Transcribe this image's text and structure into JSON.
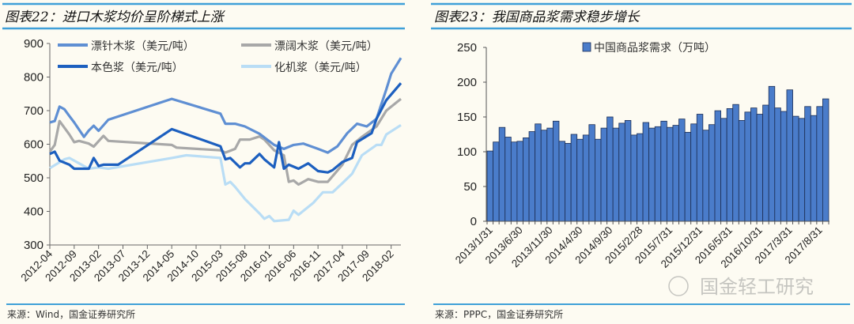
{
  "charts": [
    {
      "title": "图表22：进口木浆均价呈阶梯式上涨",
      "source": "来源：Wind，国金证券研究所"
    },
    {
      "title": "图表23：我国商品浆需求稳步增长",
      "source": "来源：PPPC，国金证券研究所",
      "watermark": "国金轻工研究"
    }
  ],
  "chart_data": [
    {
      "type": "line",
      "title": "图表22：进口木浆均价呈阶梯式上涨",
      "xlabel": "",
      "ylabel": "",
      "xlim": [
        "2012-04",
        "2018-04"
      ],
      "ylim": [
        300,
        900
      ],
      "yticks": [
        300,
        400,
        500,
        600,
        700,
        800,
        900
      ],
      "xticks": [
        "2012-04",
        "2012-09",
        "2013-02",
        "2013-07",
        "2013-12",
        "2014-05",
        "2014-10",
        "2015-03",
        "2015-08",
        "2016-01",
        "2016-06",
        "2016-11",
        "2017-04",
        "2017-09",
        "2018-02"
      ],
      "grid": false,
      "legend": "top",
      "series": [
        {
          "name": "漂针木浆（美元/吨）",
          "color": "#5f8fd3",
          "points": [
            [
              "2012-04",
              665
            ],
            [
              "2012-05",
              669
            ],
            [
              "2012-06",
              712
            ],
            [
              "2012-07",
              704
            ],
            [
              "2012-08",
              684
            ],
            [
              "2012-09",
              665
            ],
            [
              "2012-11",
              622
            ],
            [
              "2012-12",
              641
            ],
            [
              "2013-01",
              655
            ],
            [
              "2013-02",
              640
            ],
            [
              "2013-04",
              673
            ],
            [
              "2014-05",
              735
            ],
            [
              "2015-03",
              691
            ],
            [
              "2015-04",
              661
            ],
            [
              "2015-06",
              661
            ],
            [
              "2015-08",
              653
            ],
            [
              "2015-11",
              631
            ],
            [
              "2016-02",
              598
            ],
            [
              "2016-04",
              586
            ],
            [
              "2016-06",
              598
            ],
            [
              "2016-08",
              602
            ],
            [
              "2016-11",
              586
            ],
            [
              "2017-01",
              575
            ],
            [
              "2017-03",
              594
            ],
            [
              "2017-05",
              633
            ],
            [
              "2017-07",
              661
            ],
            [
              "2017-09",
              653
            ],
            [
              "2017-11",
              676
            ],
            [
              "2018-01",
              763
            ],
            [
              "2018-02",
              810
            ],
            [
              "2018-04",
              857
            ]
          ]
        },
        {
          "name": "漂阔木浆（美元/吨）",
          "color": "#a8a8a8",
          "points": [
            [
              "2012-04",
              578
            ],
            [
              "2012-05",
              598
            ],
            [
              "2012-06",
              669
            ],
            [
              "2012-08",
              629
            ],
            [
              "2012-09",
              606
            ],
            [
              "2012-10",
              610
            ],
            [
              "2012-12",
              602
            ],
            [
              "2013-01",
              593
            ],
            [
              "2013-03",
              625
            ],
            [
              "2013-04",
              610
            ],
            [
              "2014-05",
              598
            ],
            [
              "2014-06",
              590
            ],
            [
              "2015-03",
              582
            ],
            [
              "2015-04",
              575
            ],
            [
              "2015-06",
              586
            ],
            [
              "2015-07",
              614
            ],
            [
              "2015-09",
              614
            ],
            [
              "2015-11",
              623
            ],
            [
              "2015-12",
              614
            ],
            [
              "2016-02",
              582
            ],
            [
              "2016-04",
              567
            ],
            [
              "2016-05",
              488
            ],
            [
              "2016-06",
              492
            ],
            [
              "2016-07",
              480
            ],
            [
              "2016-09",
              496
            ],
            [
              "2016-11",
              488
            ],
            [
              "2017-01",
              488
            ],
            [
              "2017-04",
              539
            ],
            [
              "2017-06",
              598
            ],
            [
              "2017-08",
              622
            ],
            [
              "2017-11",
              653
            ],
            [
              "2018-01",
              700
            ],
            [
              "2018-04",
              735
            ]
          ]
        },
        {
          "name": "本色浆（美元/吨）",
          "color": "#1c5fbf",
          "points": [
            [
              "2012-04",
              571
            ],
            [
              "2012-05",
              578
            ],
            [
              "2012-06",
              551
            ],
            [
              "2012-08",
              539
            ],
            [
              "2012-09",
              527
            ],
            [
              "2012-12",
              527
            ],
            [
              "2013-01",
              559
            ],
            [
              "2013-02",
              535
            ],
            [
              "2013-03",
              539
            ],
            [
              "2013-06",
              539
            ],
            [
              "2014-05",
              645
            ],
            [
              "2015-03",
              594
            ],
            [
              "2015-04",
              555
            ],
            [
              "2015-05",
              559
            ],
            [
              "2015-07",
              531
            ],
            [
              "2015-08",
              543
            ],
            [
              "2015-09",
              543
            ],
            [
              "2015-11",
              571
            ],
            [
              "2015-12",
              555
            ],
            [
              "2016-02",
              531
            ],
            [
              "2016-03",
              606
            ],
            [
              "2016-04",
              527
            ],
            [
              "2016-05",
              539
            ],
            [
              "2016-07",
              527
            ],
            [
              "2016-09",
              543
            ],
            [
              "2016-11",
              520
            ],
            [
              "2017-01",
              516
            ],
            [
              "2017-02",
              523
            ],
            [
              "2017-04",
              547
            ],
            [
              "2017-06",
              559
            ],
            [
              "2017-07",
              606
            ],
            [
              "2017-10",
              633
            ],
            [
              "2017-11",
              676
            ],
            [
              "2018-01",
              731
            ],
            [
              "2018-04",
              782
            ]
          ]
        },
        {
          "name": "化机浆（美元/吨）",
          "color": "#b9ddf5",
          "points": [
            [
              "2012-04",
              529
            ],
            [
              "2012-07",
              555
            ],
            [
              "2012-08",
              559
            ],
            [
              "2012-10",
              543
            ],
            [
              "2012-12",
              527
            ],
            [
              "2013-02",
              531
            ],
            [
              "2013-04",
              527
            ],
            [
              "2014-05",
              559
            ],
            [
              "2014-08",
              567
            ],
            [
              "2015-03",
              559
            ],
            [
              "2015-04",
              480
            ],
            [
              "2015-05",
              488
            ],
            [
              "2015-06",
              473
            ],
            [
              "2015-08",
              437
            ],
            [
              "2015-11",
              394
            ],
            [
              "2015-12",
              378
            ],
            [
              "2016-01",
              386
            ],
            [
              "2016-02",
              371
            ],
            [
              "2016-05",
              375
            ],
            [
              "2016-06",
              402
            ],
            [
              "2016-07",
              390
            ],
            [
              "2016-10",
              425
            ],
            [
              "2016-12",
              457
            ],
            [
              "2017-02",
              457
            ],
            [
              "2017-04",
              484
            ],
            [
              "2017-06",
              512
            ],
            [
              "2017-08",
              567
            ],
            [
              "2017-11",
              598
            ],
            [
              "2017-12",
              598
            ],
            [
              "2018-01",
              629
            ],
            [
              "2018-04",
              657
            ]
          ]
        }
      ]
    },
    {
      "type": "bar",
      "title": "图表23：我国商品浆需求稳步增长",
      "xlabel": "",
      "ylabel": "",
      "ylim": [
        0,
        250
      ],
      "yticks": [
        0,
        50,
        100,
        150,
        200,
        250
      ],
      "grid": false,
      "legend": "top",
      "bar_color": "#4a7cca",
      "series": [
        {
          "name": "中国商品浆需求（万吨）",
          "values": [
            101,
            114,
            135,
            121,
            114,
            115,
            120,
            129,
            140,
            131,
            134,
            144,
            115,
            112,
            125,
            118,
            124,
            139,
            118,
            134,
            150,
            134,
            141,
            145,
            124,
            126,
            142,
            134,
            136,
            144,
            135,
            138,
            147,
            128,
            140,
            154,
            131,
            139,
            159,
            148,
            162,
            168,
            145,
            157,
            163,
            154,
            167,
            194,
            163,
            158,
            189,
            151,
            148,
            165,
            152,
            165,
            176
          ]
        }
      ],
      "categories_start": "2013/1/31",
      "xticks": [
        "2013/1/31",
        "2013/6/30",
        "2013/11/30",
        "2014/4/30",
        "2014/9/30",
        "2015/2/28",
        "2015/7/31",
        "2015/12/31",
        "2016/5/31",
        "2016/10/31",
        "2017/3/31",
        "2017/8/31"
      ]
    }
  ]
}
